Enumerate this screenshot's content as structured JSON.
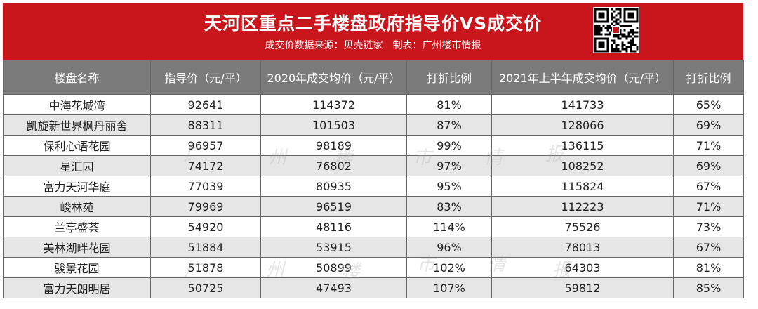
{
  "header": {
    "title": "天河区重点二手楼盘政府指导价VS成交价",
    "subtitle": "成交价数据来源：贝壳链家　制表：广州楼市情报"
  },
  "watermark_text": "广州楼市情报",
  "table": {
    "columns": [
      "楼盘名称",
      "指导价（元/平）",
      "2020年成交均价（元/平）",
      "打折比例",
      "2021年上半年成交均价（元/平）",
      "打折比例"
    ],
    "rows": [
      {
        "name": "中海花城湾",
        "guide": "92641",
        "avg2020": "114372",
        "ratio2020": "81%",
        "avg2021": "141733",
        "ratio2021": "65%"
      },
      {
        "name": "凯旋新世界枫丹丽舍",
        "guide": "88311",
        "avg2020": "101503",
        "ratio2020": "87%",
        "avg2021": "128066",
        "ratio2021": "69%"
      },
      {
        "name": "保利心语花园",
        "guide": "96957",
        "avg2020": "98189",
        "ratio2020": "99%",
        "avg2021": "136115",
        "ratio2021": "71%"
      },
      {
        "name": "星汇园",
        "guide": "74172",
        "avg2020": "76802",
        "ratio2020": "97%",
        "avg2021": "108252",
        "ratio2021": "69%"
      },
      {
        "name": "富力天河华庭",
        "guide": "77039",
        "avg2020": "80935",
        "ratio2020": "95%",
        "avg2021": "115824",
        "ratio2021": "67%"
      },
      {
        "name": "峻林苑",
        "guide": "79969",
        "avg2020": "96519",
        "ratio2020": "83%",
        "avg2021": "112223",
        "ratio2021": "71%"
      },
      {
        "name": "兰亭盛荟",
        "guide": "54920",
        "avg2020": "48116",
        "ratio2020": "114%",
        "avg2021": "75526",
        "ratio2021": "73%"
      },
      {
        "name": "美林湖畔花园",
        "guide": "51884",
        "avg2020": "53915",
        "ratio2020": "96%",
        "avg2021": "78013",
        "ratio2021": "67%"
      },
      {
        "name": "骏景花园",
        "guide": "51878",
        "avg2020": "50899",
        "ratio2020": "102%",
        "avg2021": "64303",
        "ratio2021": "81%"
      },
      {
        "name": "富力天朗明居",
        "guide": "50725",
        "avg2020": "47493",
        "ratio2020": "107%",
        "avg2021": "59812",
        "ratio2021": "85%"
      }
    ]
  },
  "colors": {
    "banner": "#c9161d",
    "header_row": "#7b7b7b",
    "stripe": "#e6e6e6"
  },
  "icons": {
    "qr": "qr-code-icon"
  }
}
